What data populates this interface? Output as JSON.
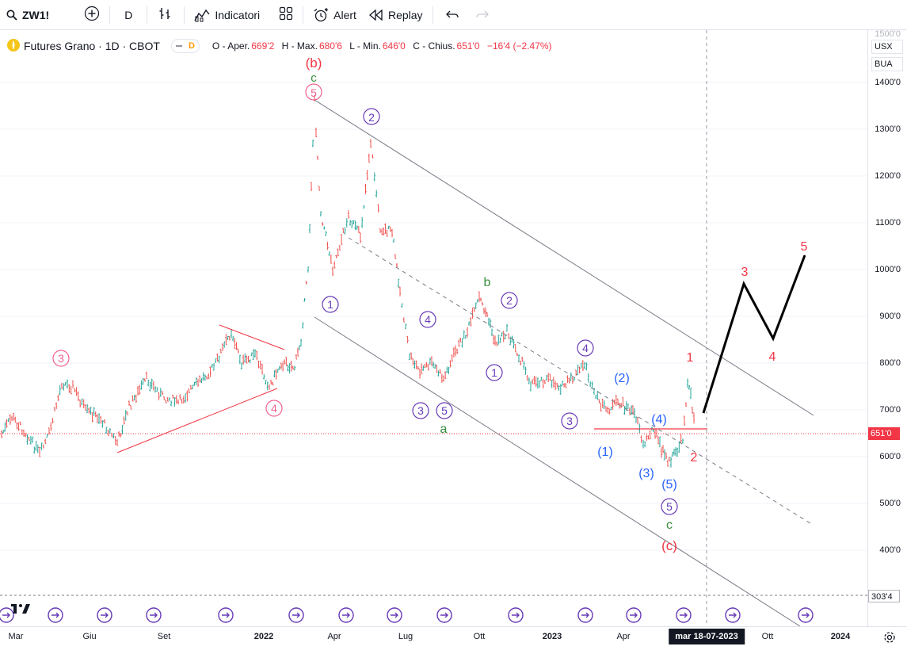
{
  "toolbar": {
    "symbol": "ZW1!",
    "interval": "D",
    "indicators_label": "Indicatori",
    "alert_label": "Alert",
    "replay_label": "Replay"
  },
  "legend": {
    "title": "Futures Grano · 1D · CBOT",
    "d_label": "D",
    "open_label": "O - Aper.",
    "open": "669'2",
    "high_label": "H - Max.",
    "high": "680'6",
    "low_label": "L - Min.",
    "low": "646'0",
    "close_label": "C - Chius.",
    "close": "651'0",
    "change": "−16'4 (−2.47%)"
  },
  "price_axis": {
    "currency": "USX",
    "exchange": "BUA",
    "top_partial": "1500'0",
    "labels": [
      "1400'0",
      "1300'0",
      "1200'0",
      "1100'0",
      "1000'0",
      "900'0",
      "800'0",
      "700'0",
      "600'0",
      "500'0",
      "400'0"
    ],
    "last_price": "651'0",
    "level_label": "303'4"
  },
  "time_axis": {
    "labels": [
      "Mar",
      "Giu",
      "Set",
      "2022",
      "Apr",
      "Lug",
      "Ott",
      "2023",
      "Apr",
      "Ott",
      "2024"
    ],
    "bold_labels": [
      "2022",
      "2023",
      "2024"
    ],
    "crosshair": "mar 18-07-2023"
  },
  "colors": {
    "up": "#26a69a",
    "down": "#ef5350",
    "purple": "#673ab7",
    "pink": "#f06292",
    "red": "#f23645",
    "blue": "#2962ff",
    "green": "#388e3c",
    "price_line": "#f23645"
  },
  "wave_labels": {
    "b_red": "(b)",
    "c_green_top": "c",
    "five_pink_top": "5",
    "two_purple_top": "2",
    "one_purple_left": "1",
    "four_purple_mid": "4",
    "three_purple_a": "3",
    "five_purple_a": "5",
    "a_green": "a",
    "b_green": "b",
    "two_purple_b": "2",
    "one_purple_b": "1",
    "three_pink_left": "3",
    "four_pink_left": "4",
    "four_purple_right": "4",
    "three_purple_right": "3",
    "two_blue": "(2)",
    "four_blue": "(4)",
    "one_blue": "(1)",
    "three_blue": "(3)",
    "five_blue": "(5)",
    "five_purple_bottom": "5",
    "c_green_bottom": "c",
    "c_red_bottom": "(c)",
    "one_red": "1",
    "two_red": "2",
    "three_red": "3",
    "four_red": "4",
    "five_red": "5"
  },
  "events_count": 16
}
